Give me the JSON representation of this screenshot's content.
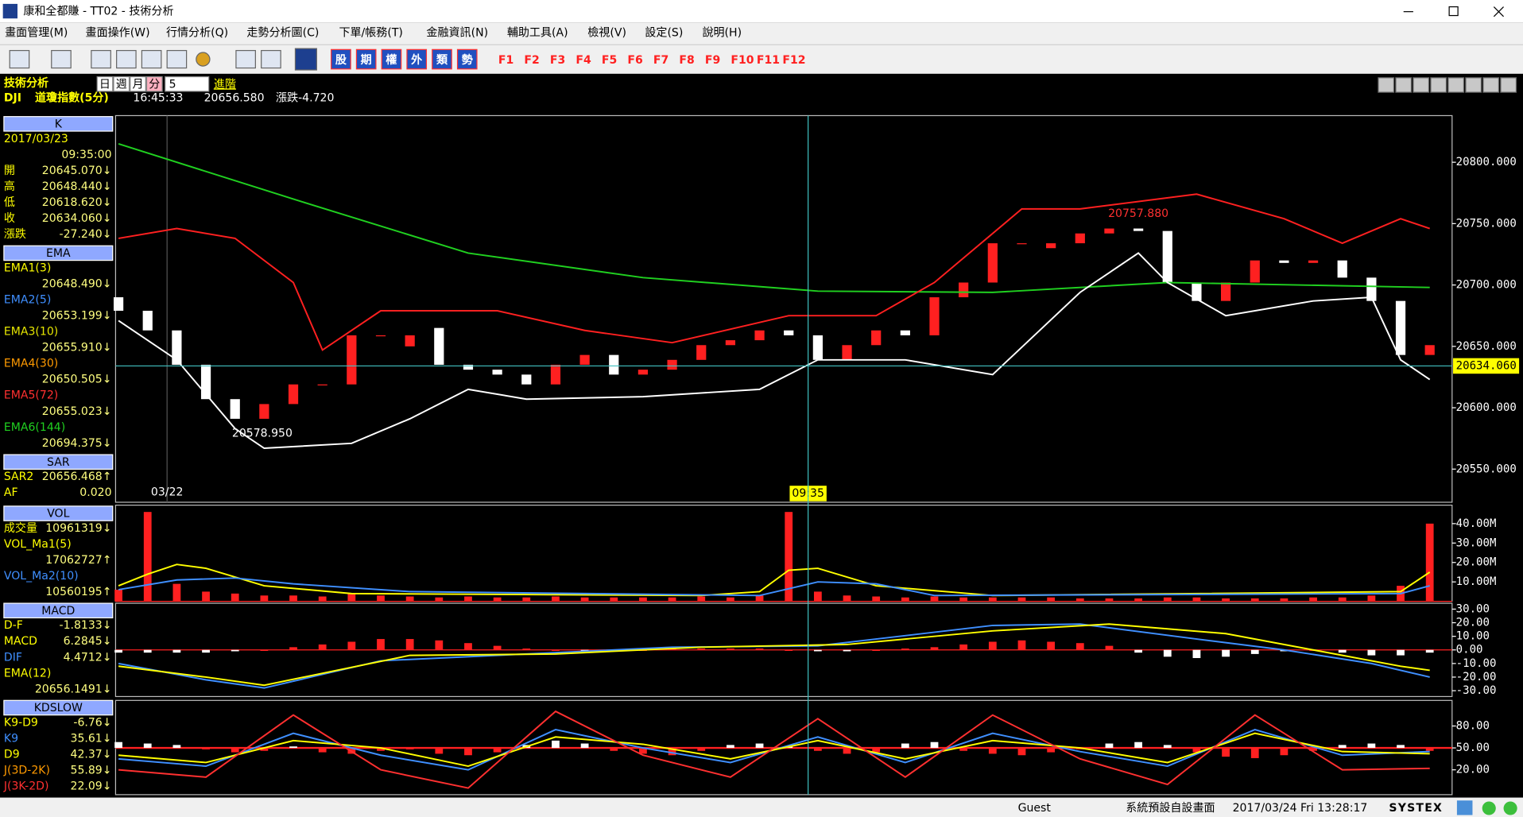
{
  "window": {
    "title": "康和全都賺 - TT02 - 技術分析"
  },
  "menu": [
    "畫面管理(M)",
    "畫面操作(W)",
    "行情分析(Q)",
    "走勢分析圖(C)",
    "下單/帳務(T)",
    "金融資訊(N)",
    "輔助工具(A)",
    "檢視(V)",
    "設定(S)",
    "說明(H)"
  ],
  "toolbar": {
    "market": [
      "股",
      "期",
      "權",
      "外",
      "類",
      "勢"
    ],
    "fkeys": [
      "F1",
      "F2",
      "F3",
      "F4",
      "F5",
      "F6",
      "F7",
      "F8",
      "F9",
      "F10",
      "F11",
      "F12"
    ]
  },
  "header": {
    "title": "技術分析",
    "periods": [
      "日",
      "週",
      "月",
      "分"
    ],
    "interval": "5",
    "advanced": "進階",
    "symbol": "DJI",
    "name": "道瓊指數(5分)",
    "time": "16:45:33",
    "price": "20656.580",
    "change": "漲跌-4.720"
  },
  "left_panel": [
    {
      "header": "K",
      "rows": [
        {
          "label": "2017/03/23",
          "color": "#ffff00"
        },
        {
          "value": "09:35:00"
        },
        {
          "label": "開",
          "value": "20645.070↓",
          "color": "#ffff00"
        },
        {
          "label": "高",
          "value": "20648.440↓",
          "color": "#ffff00"
        },
        {
          "label": "低",
          "value": "20618.620↓",
          "color": "#ffff00"
        },
        {
          "label": "收",
          "value": "20634.060↓",
          "color": "#ffff00"
        },
        {
          "label": "漲跌",
          "value": "-27.240↓",
          "color": "#ffff00"
        }
      ]
    },
    {
      "header": "EMA",
      "rows": [
        {
          "label": "EMA1(3)",
          "value": "20648.490↓",
          "color": "#ffff00"
        },
        {
          "label": "EMA2(5)",
          "value": "20653.199↓",
          "color": "#3f8fff"
        },
        {
          "label": "EMA3(10)",
          "value": "20655.910↓",
          "color": "#e6e600"
        },
        {
          "label": "EMA4(30)",
          "value": "20650.505↓",
          "color": "#ff9a00"
        },
        {
          "label": "EMA5(72)",
          "value": "20655.023↓",
          "color": "#ff3030"
        },
        {
          "label": "EMA6(144)",
          "value": "20694.375↓",
          "color": "#20d020"
        }
      ]
    },
    {
      "header": "SAR",
      "rows": [
        {
          "label": "SAR2",
          "value": "20656.468↑",
          "color": "#ffff00"
        },
        {
          "label": "AF",
          "value": "0.020",
          "color": "#ffff00"
        }
      ]
    },
    {
      "header": "VOL",
      "rows": [
        {
          "label": "成交量",
          "value": "10961319↓",
          "color": "#ffff00"
        },
        {
          "label": "VOL_Ma1(5)",
          "value": "17062727↑",
          "color": "#ffff00"
        },
        {
          "label": "VOL_Ma2(10)",
          "value": "10560195↑",
          "color": "#3f8fff"
        }
      ]
    },
    {
      "header": "MACD",
      "rows": [
        {
          "label": "D-F",
          "value": "-1.8133↓",
          "color": "#ffff00"
        },
        {
          "label": "MACD",
          "value": "6.2845↓",
          "color": "#ffff00"
        },
        {
          "label": "DIF",
          "value": "4.4712↓",
          "color": "#3f8fff"
        },
        {
          "label": "EMA(12)",
          "value": "20656.1491↓",
          "color": "#ffff00"
        }
      ]
    },
    {
      "header": "KDSLOW",
      "rows": [
        {
          "label": "K9-D9",
          "value": "-6.76↓",
          "color": "#ffff00"
        },
        {
          "label": "K9",
          "value": "35.61↓",
          "color": "#3f8fff"
        },
        {
          "label": "D9",
          "value": "42.37↓",
          "color": "#ffff00"
        },
        {
          "label": "J(3D-2K)",
          "value": "55.89↓",
          "color": "#ff9a00"
        },
        {
          "label": "J(3K-2D)",
          "value": "22.09↓",
          "color": "#ff3030"
        }
      ]
    }
  ],
  "chart_data": [
    {
      "type": "candlestick",
      "ylim": [
        20523,
        20838
      ],
      "yticks": [
        {
          "value": 20550,
          "label": "20550.000"
        },
        {
          "value": 20600,
          "label": "20600.000"
        },
        {
          "value": 20650,
          "label": "20650.000"
        },
        {
          "value": 20700,
          "label": "20700.000"
        },
        {
          "value": 20750,
          "label": "20750.000"
        },
        {
          "value": 20800,
          "label": "20800.000"
        }
      ],
      "date_label": "03/22",
      "cursor": {
        "time": "09:35",
        "value": 20634.06,
        "label": "20634.060"
      },
      "annotations": [
        {
          "text": "20757.880",
          "value": 20757.88,
          "color": "#ff3030"
        },
        {
          "text": "20578.950",
          "value": 20578.95,
          "color": "#ffffff"
        }
      ],
      "up_color": "#ff2020",
      "down_color": "#ffffff",
      "open": [
        20690,
        20679,
        20663,
        20635,
        20607,
        20591,
        20603,
        20619,
        20619,
        20659,
        20650,
        20665,
        20635,
        20631,
        20627,
        20619,
        20635,
        20643,
        20627,
        20631,
        20639,
        20651,
        20655,
        20663,
        20659,
        20639,
        20651,
        20663,
        20659,
        20690,
        20702,
        20734,
        20730,
        20734,
        20742,
        20746,
        20744,
        20702,
        20687,
        20702,
        20720,
        20718,
        20720,
        20706,
        20687,
        20643
      ],
      "close": [
        20679,
        20663,
        20635,
        20607,
        20591,
        20603,
        20619,
        20619,
        20659,
        20659,
        20659,
        20635,
        20631,
        20627,
        20619,
        20635,
        20643,
        20627,
        20631,
        20639,
        20651,
        20655,
        20663,
        20659,
        20639,
        20651,
        20663,
        20659,
        20690,
        20702,
        20734,
        20734,
        20734,
        20742,
        20746,
        20744,
        20702,
        20687,
        20702,
        20720,
        20718,
        20720,
        20706,
        20687,
        20643,
        20651
      ],
      "series": [
        {
          "name": "EMA6(144)",
          "color": "#20d020",
          "x": [
            0,
            6,
            12,
            18,
            24,
            30,
            36,
            45
          ],
          "values": [
            20815,
            20770,
            20726,
            20706,
            20695,
            20694,
            20702,
            20698
          ]
        },
        {
          "name": "BB-UP",
          "color": "#ff2020",
          "x": [
            0,
            2,
            4,
            6,
            7,
            9,
            13,
            16,
            19,
            23,
            26,
            28,
            31,
            33,
            37,
            40,
            42,
            44,
            45
          ],
          "values": [
            20738,
            20746,
            20738,
            20702,
            20647,
            20679,
            20679,
            20663,
            20653,
            20675,
            20675,
            20702,
            20762,
            20762,
            20774,
            20754,
            20734,
            20754,
            20746
          ]
        },
        {
          "name": "BB-LOW",
          "color": "#ffffff",
          "x": [
            0,
            2,
            4,
            5,
            8,
            10,
            12,
            14,
            18,
            22,
            24,
            27,
            30,
            33,
            35,
            36,
            38,
            41,
            43,
            44,
            45
          ],
          "values": [
            20671,
            20639,
            20583,
            20567,
            20571,
            20591,
            20615,
            20607,
            20609,
            20615,
            20639,
            20639,
            20627,
            20694,
            20726,
            20702,
            20675,
            20687,
            20690,
            20639,
            20623
          ]
        }
      ]
    },
    {
      "type": "bar",
      "ylim": [
        0,
        49500000
      ],
      "yticks": [
        {
          "value": 10000000,
          "label": "10.00M"
        },
        {
          "value": 20000000,
          "label": "20.00M"
        },
        {
          "value": 30000000,
          "label": "30.00M"
        },
        {
          "value": 40000000,
          "label": "40.00M"
        }
      ],
      "baseline": 0,
      "bars": {
        "color": "#ff2020",
        "negative_color": "#ffffff",
        "values": [
          6000000,
          46000000,
          9000000,
          5000000,
          4000000,
          3000000,
          3000000,
          2500000,
          4000000,
          3000000,
          2500000,
          2000000,
          2500000,
          2000000,
          2000000,
          2500000,
          2000000,
          2000000,
          2000000,
          2000000,
          2500000,
          2000000,
          3000000,
          46000000,
          5000000,
          3000000,
          2500000,
          2000000,
          2500000,
          2000000,
          2000000,
          2000000,
          2000000,
          1500000,
          1500000,
          1500000,
          2000000,
          2000000,
          1500000,
          1500000,
          1500000,
          2000000,
          2000000,
          3000000,
          8000000,
          40000000
        ]
      },
      "series": [
        {
          "name": "VOL_Ma1(5)",
          "color": "#ffff00",
          "x": [
            0,
            1,
            2,
            3,
            5,
            8,
            20,
            22,
            23,
            24,
            26,
            30,
            44,
            45
          ],
          "values": [
            8000000,
            14000000,
            19000000,
            17000000,
            8000000,
            4000000,
            3000000,
            5000000,
            16000000,
            17000000,
            8000000,
            3000000,
            5000000,
            15000000
          ]
        },
        {
          "name": "VOL_Ma2(10)",
          "color": "#3f8fff",
          "x": [
            0,
            2,
            4,
            6,
            10,
            22,
            24,
            26,
            28,
            44,
            45
          ],
          "values": [
            6000000,
            11000000,
            12000000,
            9000000,
            5000000,
            3000000,
            10000000,
            9000000,
            3000000,
            4000000,
            8000000
          ]
        }
      ]
    },
    {
      "type": "bar",
      "ylim": [
        -34.3,
        34.3
      ],
      "yticks": [
        {
          "value": -30,
          "label": "-30.00"
        },
        {
          "value": -20,
          "label": "-20.00"
        },
        {
          "value": -10,
          "label": "-10.00"
        },
        {
          "value": 0,
          "label": "0.00"
        },
        {
          "value": 10,
          "label": "10.00"
        },
        {
          "value": 20,
          "label": "20.00"
        },
        {
          "value": 30,
          "label": "30.00"
        }
      ],
      "baseline": 0,
      "bars": {
        "color": "#ff2020",
        "negative_color": "#ffffff",
        "values": [
          -2,
          -2,
          -2,
          -2,
          -1,
          0,
          2,
          4,
          6,
          8,
          8,
          7,
          5,
          3,
          1,
          0,
          -1,
          -1,
          0,
          1,
          1,
          1,
          1,
          0,
          -1,
          -1,
          0,
          1,
          2,
          4,
          6,
          7,
          6,
          5,
          3,
          -2,
          -5,
          -6,
          -5,
          -3,
          -1,
          0,
          -2,
          -4,
          -4,
          -2
        ]
      },
      "series": [
        {
          "name": "DIF",
          "color": "#3f8fff",
          "x": [
            0,
            3,
            5,
            9,
            14,
            19,
            24,
            30,
            33,
            37,
            40,
            43,
            45
          ],
          "values": [
            -10,
            -22,
            -28,
            -8,
            -3,
            2,
            3,
            18,
            19,
            8,
            0,
            -10,
            -20
          ]
        },
        {
          "name": "MACD",
          "color": "#ffff00",
          "x": [
            0,
            3,
            5,
            10,
            15,
            20,
            25,
            30,
            34,
            38,
            41,
            44,
            45
          ],
          "values": [
            -12,
            -20,
            -26,
            -4,
            -3,
            2,
            4,
            14,
            19,
            12,
            0,
            -12,
            -15
          ]
        }
      ]
    },
    {
      "type": "bar",
      "ylim": [
        -14,
        115
      ],
      "yticks": [
        {
          "value": 20,
          "label": "20.00"
        },
        {
          "value": 50,
          "label": "50.00"
        },
        {
          "value": 80,
          "label": "80.00"
        }
      ],
      "baseline": 50,
      "bars": {
        "color": "#ff2020",
        "negative_color": "#ffffff",
        "values": [
          -8,
          -6,
          -4,
          2,
          6,
          4,
          -2,
          6,
          8,
          4,
          2,
          8,
          10,
          6,
          -4,
          -10,
          -6,
          4,
          8,
          10,
          4,
          -4,
          -6,
          -2,
          4,
          8,
          6,
          -6,
          -8,
          4,
          8,
          10,
          6,
          2,
          -6,
          -8,
          -4,
          6,
          12,
          14,
          10,
          4,
          -4,
          -6,
          -4,
          4
        ]
      },
      "series": [
        {
          "name": "K9",
          "color": "#3f8fff",
          "x": [
            0,
            3,
            6,
            9,
            12,
            15,
            18,
            21,
            24,
            27,
            30,
            33,
            36,
            39,
            42,
            45
          ],
          "values": [
            35,
            25,
            70,
            40,
            20,
            75,
            50,
            30,
            65,
            30,
            70,
            45,
            25,
            75,
            40,
            45
          ]
        },
        {
          "name": "D9",
          "color": "#ffff00",
          "x": [
            0,
            3,
            6,
            9,
            12,
            15,
            18,
            21,
            24,
            27,
            30,
            33,
            36,
            39,
            42,
            45
          ],
          "values": [
            40,
            30,
            60,
            50,
            25,
            65,
            55,
            35,
            60,
            35,
            60,
            50,
            30,
            70,
            45,
            42
          ]
        },
        {
          "name": "J(3K-2D)",
          "color": "#ff3030",
          "x": [
            0,
            3,
            6,
            9,
            12,
            15,
            18,
            21,
            24,
            27,
            30,
            33,
            36,
            39,
            42,
            45
          ],
          "values": [
            20,
            10,
            95,
            20,
            -5,
            100,
            40,
            10,
            90,
            10,
            95,
            35,
            0,
            95,
            20,
            22
          ]
        }
      ]
    }
  ],
  "status": {
    "user": "Guest",
    "layout": "系統預設自設畫面",
    "datetime": "2017/03/24 Fri 13:28:17",
    "brand": "SYSTEX"
  }
}
